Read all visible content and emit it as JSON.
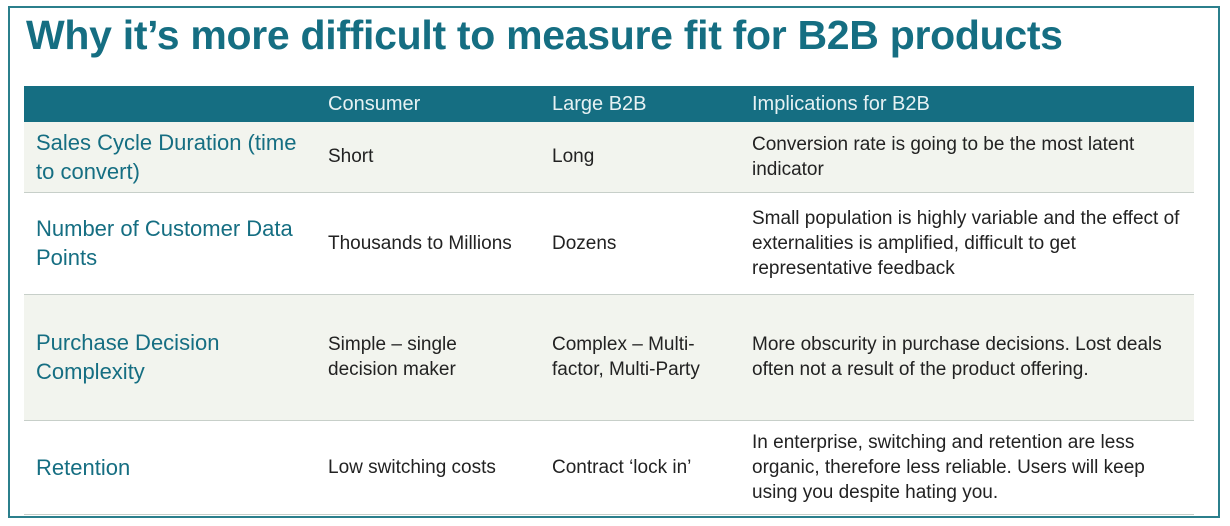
{
  "title": "Why it’s more difficult to measure fit for B2B products",
  "colors": {
    "accent": "#156e82",
    "header_text": "#e6f1f3",
    "row_band": "#f2f4ee",
    "border": "#2b7f8c"
  },
  "table": {
    "headers": [
      "",
      "Consumer",
      "Large B2B",
      "Implications for B2B"
    ],
    "rows": [
      {
        "label": "Sales Cycle Duration (time to convert)",
        "consumer": "Short",
        "b2b": "Long",
        "implication": "Conversion rate is going to be the most latent indicator"
      },
      {
        "label": "Number of Customer Data Points",
        "consumer": "Thousands to Millions",
        "b2b": "Dozens",
        "implication": "Small population is highly variable and the effect of externalities is amplified, difficult to get representative feedback"
      },
      {
        "label": "Purchase Decision Complexity",
        "consumer": "Simple – single decision maker",
        "b2b": "Complex – Multi-factor, Multi-Party",
        "implication": "More obscurity in purchase decisions. Lost deals often not a result of the product offering."
      },
      {
        "label": "Retention",
        "consumer": "Low switching costs",
        "b2b": "Contract ‘lock in’",
        "implication": "In enterprise, switching and retention are less organic, therefore less reliable. Users will keep using you despite hating you."
      }
    ]
  }
}
